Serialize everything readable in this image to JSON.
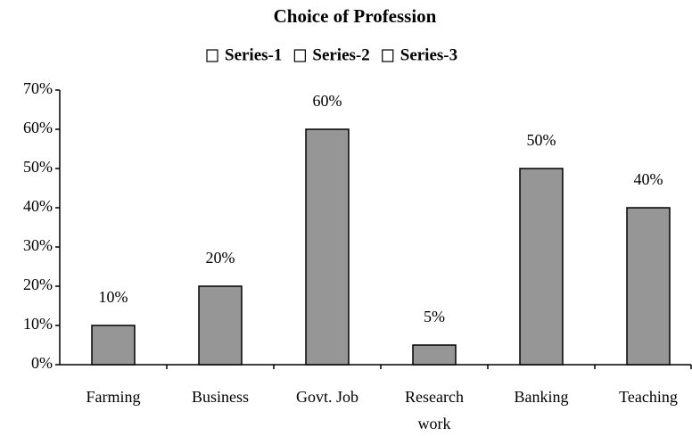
{
  "chart_data": {
    "type": "bar",
    "title": "Choice of Profession",
    "legend_labels": [
      "Series-1",
      "Series-2",
      "Series-3"
    ],
    "categories": [
      "Farming",
      "Business",
      "Govt. Job",
      "Research work",
      "Banking",
      "Teaching"
    ],
    "values": [
      10,
      20,
      60,
      5,
      50,
      40
    ],
    "value_labels": [
      "10%",
      "20%",
      "60%",
      "5%",
      "50%",
      "40%"
    ],
    "color": "#969696",
    "ylim": [
      0,
      70
    ],
    "yticks": [
      {
        "value": 0,
        "label": "0%"
      },
      {
        "value": 10,
        "label": "10%"
      },
      {
        "value": 20,
        "label": "20%"
      },
      {
        "value": 30,
        "label": "30%"
      },
      {
        "value": 40,
        "label": "40%"
      },
      {
        "value": 50,
        "label": "50%"
      },
      {
        "value": 60,
        "label": "60%"
      },
      {
        "value": 70,
        "label": "70%"
      }
    ],
    "grid": false
  }
}
